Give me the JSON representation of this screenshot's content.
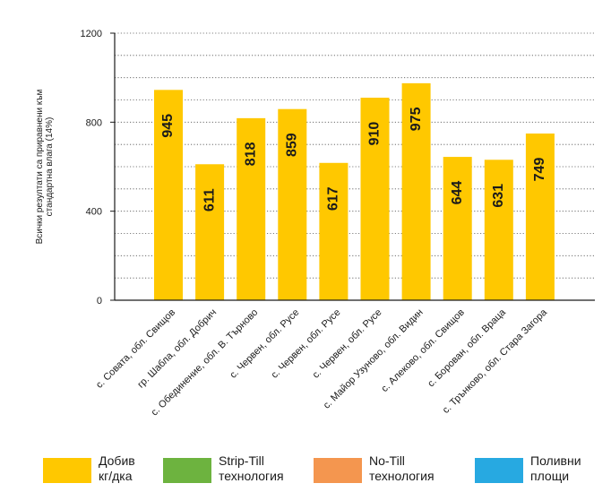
{
  "chart_data": {
    "type": "bar",
    "ylabel": "Всички резултати са приравнени към\nстандартна влага (14%)",
    "ylim": [
      0,
      1200
    ],
    "yticks": [
      0,
      400,
      800,
      1200
    ],
    "grid": true,
    "categories": [
      "с. Совата, обл. Свищов",
      "гр. Шабла, обл. Добрич",
      "с. Обединение, обл. В. Търново",
      "с. Червен, обл. Русе",
      "с. Червен, обл. Русе",
      "с. Червен, обл. Русе",
      "с. Майор Узуново, обл. Видин",
      "с. Алеково, обл. Свищов",
      "с. Борован, обл. Враца",
      "с. Трънково, обл. Стара Загора"
    ],
    "values": [
      945,
      611,
      818,
      859,
      617,
      910,
      975,
      644,
      631,
      749
    ],
    "bar_color": "#FFC800"
  },
  "legend": [
    {
      "label": "Добив\nкг/дка",
      "color": "#FFC800"
    },
    {
      "label": "Strip-Till\nтехнология",
      "color": "#6DB33F"
    },
    {
      "label": "No-Till\nтехнология",
      "color": "#F4964F"
    },
    {
      "label": "Поливни\nплощи",
      "color": "#27A9E1"
    }
  ]
}
